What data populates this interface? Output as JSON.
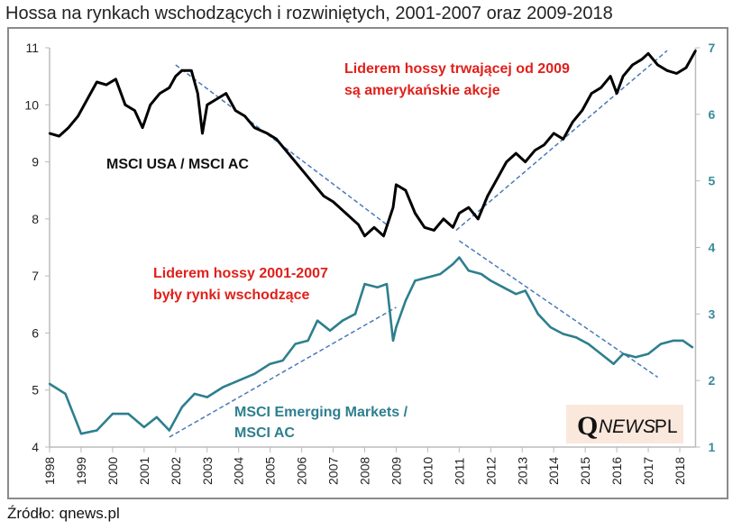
{
  "title": "Hossa na rynkach wschodzących i rozwiniętych, 2001-2007 oraz 2009-2018",
  "source": "Źródło: qnews.pl",
  "logo": "QNEWS.PL",
  "chart_data": {
    "type": "line",
    "title": "Hossa na rynkach wschodzących i rozwiniętych, 2001-2007 oraz 2009-2018",
    "x_ticks": [
      "1998",
      "1999",
      "2000",
      "2001",
      "2002",
      "2003",
      "2004",
      "2005",
      "2006",
      "2007",
      "2008",
      "2009",
      "2010",
      "2011",
      "2012",
      "2013",
      "2014",
      "2015",
      "2016",
      "2017",
      "2018"
    ],
    "xlim": [
      1998,
      2018.5
    ],
    "y_left": {
      "ylim": [
        4,
        11
      ],
      "ticks": [
        "4",
        "5",
        "6",
        "7",
        "8",
        "9",
        "10",
        "11"
      ]
    },
    "y_right": {
      "ylim": [
        1,
        7
      ],
      "ticks": [
        "1",
        "2",
        "3",
        "4",
        "5",
        "6",
        "7"
      ]
    },
    "grid": false,
    "colors": {
      "usa": "#000000",
      "em": "#2e7f8e",
      "trend": "#4a7ab8",
      "annotation": "#e0201a"
    },
    "series": [
      {
        "name": "MSCI USA / MSCI AC",
        "axis": "left",
        "x": [
          1998.0,
          1998.3,
          1998.6,
          1998.9,
          1999.2,
          1999.5,
          1999.8,
          2000.1,
          2000.4,
          2000.7,
          2000.95,
          2001.2,
          2001.5,
          2001.8,
          2002.0,
          2002.2,
          2002.5,
          2002.7,
          2002.85,
          2003.0,
          2003.3,
          2003.6,
          2003.9,
          2004.2,
          2004.5,
          2004.9,
          2005.2,
          2005.5,
          2005.8,
          2006.1,
          2006.4,
          2006.7,
          2007.0,
          2007.4,
          2007.8,
          2008.0,
          2008.3,
          2008.6,
          2008.9,
          2009.0,
          2009.3,
          2009.6,
          2009.9,
          2010.2,
          2010.5,
          2010.8,
          2011.0,
          2011.3,
          2011.6,
          2011.9,
          2012.2,
          2012.5,
          2012.8,
          2013.1,
          2013.4,
          2013.7,
          2014.0,
          2014.3,
          2014.6,
          2014.9,
          2015.2,
          2015.5,
          2015.8,
          2016.0,
          2016.2,
          2016.5,
          2016.8,
          2017.0,
          2017.3,
          2017.6,
          2017.9,
          2018.2,
          2018.5
        ],
        "values": [
          9.5,
          9.45,
          9.6,
          9.8,
          10.1,
          10.4,
          10.35,
          10.45,
          10.0,
          9.9,
          9.6,
          10.0,
          10.2,
          10.3,
          10.5,
          10.6,
          10.6,
          10.2,
          9.5,
          10.0,
          10.1,
          10.2,
          9.9,
          9.8,
          9.6,
          9.5,
          9.4,
          9.2,
          9.0,
          8.8,
          8.6,
          8.4,
          8.3,
          8.1,
          7.9,
          7.7,
          7.85,
          7.7,
          8.2,
          8.6,
          8.5,
          8.1,
          7.85,
          7.8,
          8.0,
          7.85,
          8.1,
          8.2,
          8.0,
          8.4,
          8.7,
          9.0,
          9.15,
          9.0,
          9.2,
          9.3,
          9.5,
          9.4,
          9.7,
          9.9,
          10.2,
          10.3,
          10.5,
          10.2,
          10.5,
          10.7,
          10.8,
          10.9,
          10.7,
          10.6,
          10.55,
          10.65,
          10.95
        ]
      },
      {
        "name": "MSCI Emerging Markets / MSCI AC",
        "axis": "right",
        "x": [
          1998.0,
          1998.5,
          1999.0,
          1999.5,
          2000.0,
          2000.5,
          2001.0,
          2001.4,
          2001.8,
          2002.2,
          2002.6,
          2003.0,
          2003.5,
          2004.0,
          2004.5,
          2005.0,
          2005.4,
          2005.8,
          2006.2,
          2006.5,
          2006.9,
          2007.3,
          2007.7,
          2008.0,
          2008.4,
          2008.7,
          2008.9,
          2009.0,
          2009.3,
          2009.6,
          2010.0,
          2010.4,
          2010.8,
          2011.0,
          2011.3,
          2011.7,
          2012.0,
          2012.4,
          2012.8,
          2013.1,
          2013.5,
          2013.9,
          2014.3,
          2014.7,
          2015.1,
          2015.5,
          2015.9,
          2016.2,
          2016.6,
          2017.0,
          2017.4,
          2017.8,
          2018.1,
          2018.4
        ],
        "values": [
          1.95,
          1.8,
          1.2,
          1.25,
          1.5,
          1.5,
          1.3,
          1.45,
          1.25,
          1.6,
          1.8,
          1.75,
          1.9,
          2.0,
          2.1,
          2.25,
          2.3,
          2.55,
          2.6,
          2.9,
          2.75,
          2.9,
          3.0,
          3.45,
          3.4,
          3.45,
          2.6,
          2.8,
          3.2,
          3.5,
          3.55,
          3.6,
          3.75,
          3.85,
          3.65,
          3.6,
          3.5,
          3.4,
          3.3,
          3.35,
          3.0,
          2.8,
          2.7,
          2.65,
          2.55,
          2.4,
          2.25,
          2.4,
          2.35,
          2.4,
          2.55,
          2.6,
          2.6,
          2.5
        ]
      }
    ],
    "trendlines": [
      {
        "axis": "left",
        "x": [
          2002.0,
          2008.7
        ],
        "values": [
          10.7,
          7.9
        ]
      },
      {
        "axis": "left",
        "x": [
          2010.9,
          2017.6
        ],
        "values": [
          7.8,
          10.95
        ]
      },
      {
        "axis": "right",
        "x": [
          2001.8,
          2009.0
        ],
        "values": [
          1.15,
          3.1
        ]
      },
      {
        "axis": "right",
        "x": [
          2011.0,
          2017.3
        ],
        "values": [
          4.1,
          2.05
        ]
      }
    ],
    "annotations": {
      "usa_label": "MSCI USA / MSCI AC",
      "em_label_1": "MSCI Emerging Markets /",
      "em_label_2": "MSCI AC",
      "red_top_1": "Liderem hossy trwającej od 2009",
      "red_top_2": "są amerykańskie akcje",
      "red_mid_1": "Liderem hossy 2001-2007",
      "red_mid_2": "były rynki wschodzące"
    }
  }
}
